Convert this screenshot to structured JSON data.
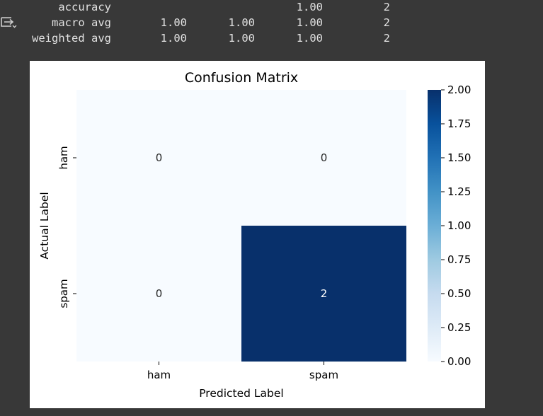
{
  "output_icon": "output-arrow-icon",
  "report": {
    "rows": [
      {
        "label": "accuracy",
        "precision": "",
        "recall": "",
        "f1": "1.00",
        "support": "2"
      },
      {
        "label": "macro avg",
        "precision": "1.00",
        "recall": "1.00",
        "f1": "1.00",
        "support": "2"
      },
      {
        "label": "weighted avg",
        "precision": "1.00",
        "recall": "1.00",
        "f1": "1.00",
        "support": "2"
      }
    ]
  },
  "chart_data": {
    "type": "heatmap",
    "title": "Confusion Matrix",
    "xlabel": "Predicted Label",
    "ylabel": "Actual Label",
    "x_categories": [
      "ham",
      "spam"
    ],
    "y_categories": [
      "ham",
      "spam"
    ],
    "values": [
      [
        0,
        0
      ],
      [
        0,
        2
      ]
    ],
    "annotations": [
      [
        "0",
        "0"
      ],
      [
        "0",
        "2"
      ]
    ],
    "colormap": "Blues",
    "colorbar": {
      "range": [
        0,
        2
      ],
      "ticks": [
        "0.00",
        "0.25",
        "0.50",
        "0.75",
        "1.00",
        "1.25",
        "1.50",
        "1.75",
        "2.00"
      ]
    },
    "colors": {
      "low": "#f7fbff",
      "high": "#08306b"
    }
  }
}
